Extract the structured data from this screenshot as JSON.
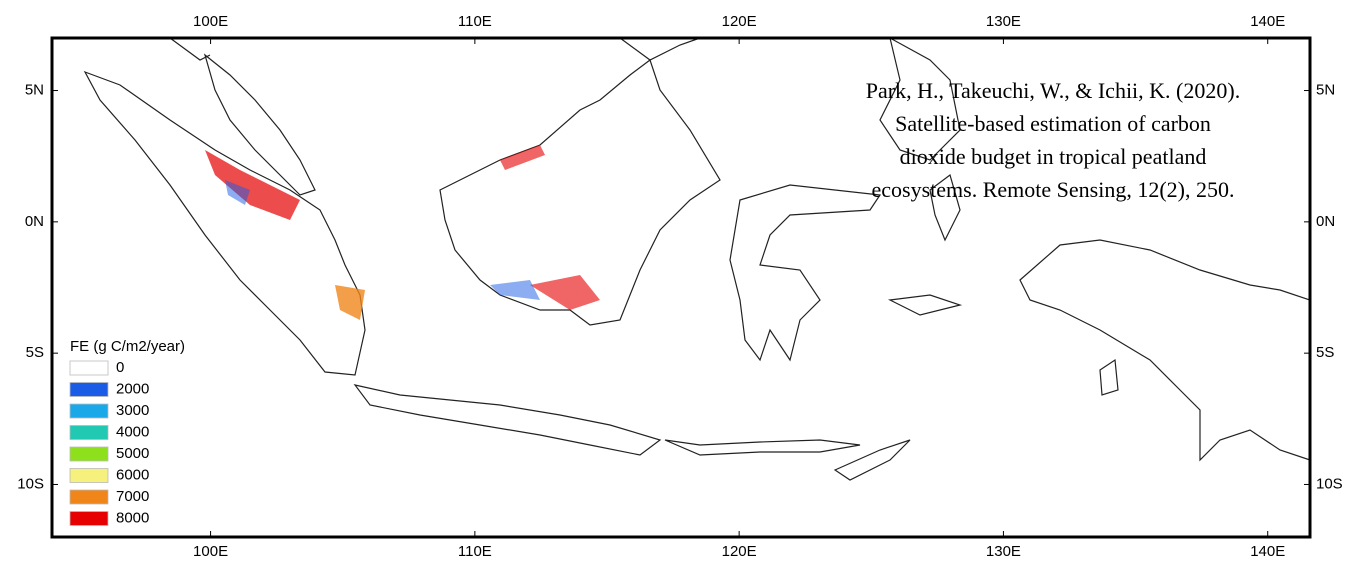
{
  "map": {
    "xlim": [
      94,
      141.6
    ],
    "ylim": [
      -12,
      7
    ],
    "lon_ticks": [
      {
        "value": 100,
        "label": "100E"
      },
      {
        "value": 110,
        "label": "110E"
      },
      {
        "value": 120,
        "label": "120E"
      },
      {
        "value": 130,
        "label": "130E"
      },
      {
        "value": 140,
        "label": "140E"
      }
    ],
    "lat_ticks": [
      {
        "value": 5,
        "label": "5N"
      },
      {
        "value": 0,
        "label": "0N"
      },
      {
        "value": -5,
        "label": "5S"
      },
      {
        "value": -10,
        "label": "10S"
      }
    ],
    "citation": [
      "Park, H., Takeuchi, W., & Ichii, K. (2020).",
      "Satellite-based estimation of carbon",
      "dioxide budget in tropical peatland",
      "ecosystems. Remote Sensing, 12(2), 250."
    ],
    "legend": {
      "title": "FE (g C/m2/year)",
      "entries": [
        {
          "label": 0,
          "color": "#ffffff"
        },
        {
          "label": 2000,
          "color": "#1a5ce6"
        },
        {
          "label": 3000,
          "color": "#1aa8e8"
        },
        {
          "label": 4000,
          "color": "#22c9b2"
        },
        {
          "label": 5000,
          "color": "#8ee01c"
        },
        {
          "label": 6000,
          "color": "#f6f07c"
        },
        {
          "label": 7000,
          "color": "#f0861a"
        },
        {
          "label": 8000,
          "color": "#e60000"
        }
      ]
    }
  }
}
